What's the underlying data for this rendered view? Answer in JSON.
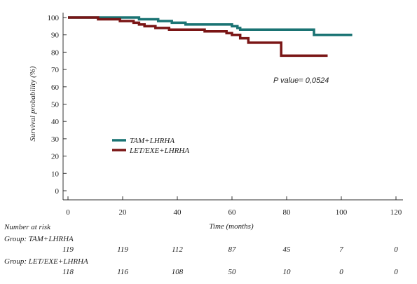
{
  "chart_data": {
    "type": "line",
    "ylabel": "Survival probability (%)",
    "xlabel": "Time (months)",
    "xlim": [
      0,
      120
    ],
    "ylim": [
      0,
      100
    ],
    "x_ticks": [
      0,
      20,
      40,
      60,
      80,
      100,
      120
    ],
    "y_ticks": [
      0,
      10,
      20,
      30,
      40,
      50,
      60,
      70,
      80,
      90,
      100
    ],
    "grid": false,
    "legend_position": "left-middle",
    "annotation": "P value= 0,0524",
    "series": [
      {
        "name": "TAM+LHRHA",
        "color": "#1a7373",
        "steps": [
          [
            0,
            100
          ],
          [
            26,
            99
          ],
          [
            33,
            98
          ],
          [
            38,
            97
          ],
          [
            43,
            96
          ],
          [
            60,
            95
          ],
          [
            62,
            94
          ],
          [
            63,
            93
          ],
          [
            90,
            90
          ],
          [
            104,
            90
          ]
        ]
      },
      {
        "name": "LET/EXE+LHRHA",
        "color": "#7a1515",
        "steps": [
          [
            0,
            100
          ],
          [
            11,
            99
          ],
          [
            19,
            98
          ],
          [
            24,
            97
          ],
          [
            26,
            96
          ],
          [
            28,
            95
          ],
          [
            32,
            94
          ],
          [
            37,
            93
          ],
          [
            50,
            92
          ],
          [
            58,
            91
          ],
          [
            60,
            90
          ],
          [
            63,
            88
          ],
          [
            66,
            85.5
          ],
          [
            76,
            85.5
          ],
          [
            78,
            78
          ],
          [
            95,
            78
          ]
        ]
      }
    ]
  },
  "risk_table": {
    "title": "Number at risk",
    "time_points": [
      0,
      20,
      40,
      60,
      80,
      100,
      120
    ],
    "groups": [
      {
        "label": "Group: TAM+LHRHA",
        "counts": [
          "119",
          "119",
          "112",
          "87",
          "45",
          "7",
          "0"
        ]
      },
      {
        "label": "Group: LET/EXE+LHRHA",
        "counts": [
          "118",
          "116",
          "108",
          "50",
          "10",
          "0",
          "0"
        ]
      }
    ]
  }
}
